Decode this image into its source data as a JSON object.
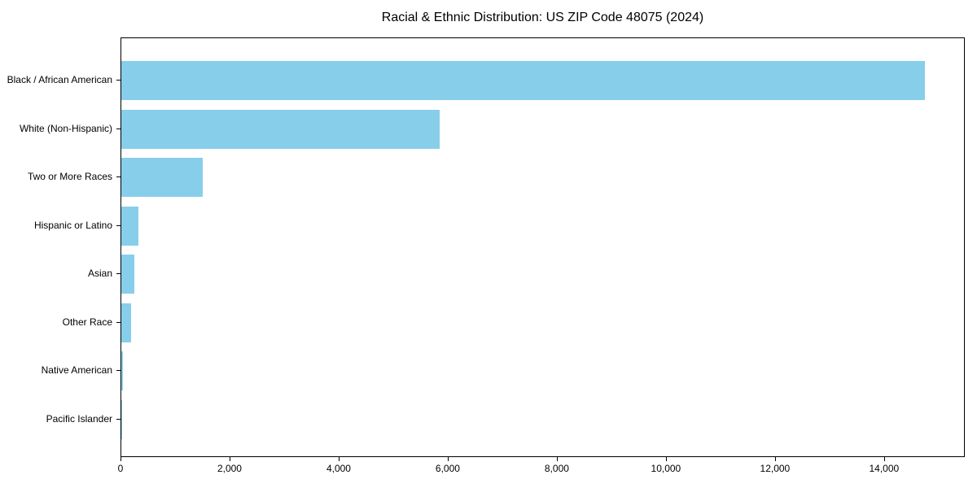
{
  "chart_data": {
    "type": "bar",
    "orientation": "horizontal",
    "title": "Racial & Ethnic Distribution: US ZIP Code 48075 (2024)",
    "categories": [
      "Black / African American",
      "White (Non-Hispanic)",
      "Two or More Races",
      "Hispanic or Latino",
      "Asian",
      "Other Race",
      "Native American",
      "Pacific Islander"
    ],
    "values": [
      14740,
      5840,
      1500,
      315,
      240,
      175,
      25,
      10
    ],
    "xlabel": "",
    "ylabel": "",
    "xlim": [
      0,
      15480
    ],
    "x_ticks": [
      0,
      2000,
      4000,
      6000,
      8000,
      10000,
      12000,
      14000
    ],
    "x_tick_labels": [
      "0",
      "2,000",
      "4,000",
      "6,000",
      "8,000",
      "10,000",
      "12,000",
      "14,000"
    ],
    "grid": false,
    "legend_position": "none",
    "bar_color": "#87CEEB",
    "spine_color": "#000000",
    "text_color": "#000000",
    "background_color": "#FFFFFF"
  }
}
